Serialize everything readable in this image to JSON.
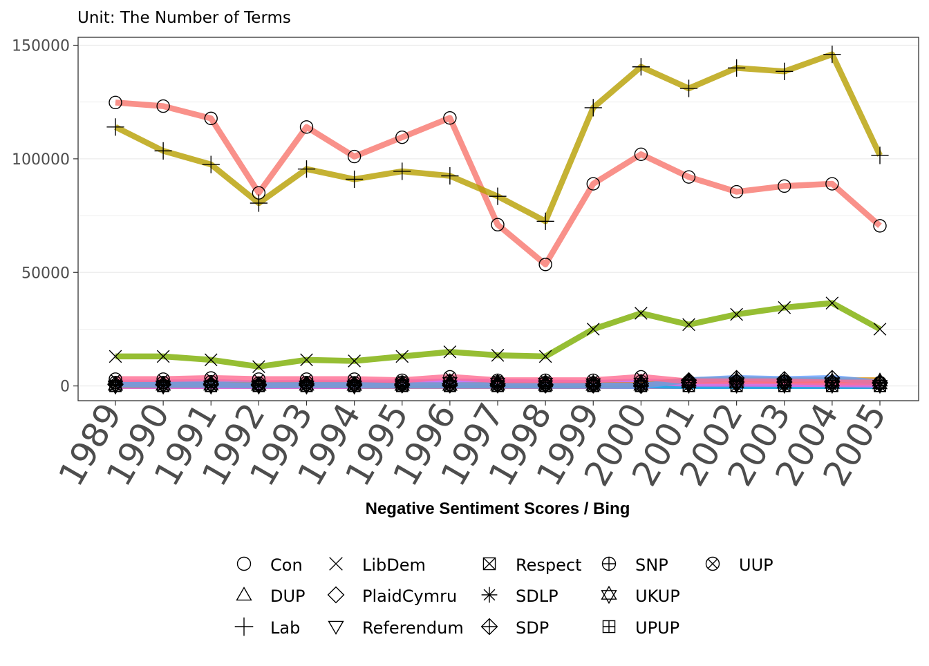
{
  "chart_data": {
    "type": "line",
    "subtitle": "Unit: The Number of Terms",
    "xlabel": "Negative Sentiment Scores / Bing",
    "ylabel": "",
    "ylim": [
      -6500,
      153500
    ],
    "y_ticks": [
      0,
      50000,
      100000,
      150000
    ],
    "y_tick_labels": [
      "0",
      "50000",
      "100000",
      "150000"
    ],
    "grid": true,
    "legend_position": "bottom",
    "x": [
      "1989",
      "1990",
      "1991",
      "1992",
      "1993",
      "1994",
      "1995",
      "1996",
      "1997",
      "1998",
      "1999",
      "2000",
      "2001",
      "2002",
      "2003",
      "2004",
      "2005"
    ],
    "series": [
      {
        "name": "Con",
        "color": "#F8766D",
        "shape": "circle",
        "values": [
          124800,
          123200,
          117800,
          85000,
          114000,
          101000,
          109500,
          118000,
          71000,
          53500,
          89000,
          102000,
          92000,
          85500,
          88000,
          89000,
          70500
        ]
      },
      {
        "name": "DUP",
        "color": "#DE8C00",
        "shape": "triangle-up",
        "values": [
          400,
          400,
          500,
          300,
          400,
          300,
          300,
          300,
          400,
          300,
          300,
          400,
          2500,
          3000,
          2500,
          2500,
          2500
        ]
      },
      {
        "name": "Lab",
        "color": "#B79F00",
        "shape": "plus",
        "values": [
          114000,
          103500,
          97500,
          80500,
          95500,
          91000,
          94500,
          92500,
          83500,
          72500,
          122500,
          140500,
          131000,
          140000,
          138500,
          146000,
          101500
        ]
      },
      {
        "name": "LibDem",
        "color": "#7CAE00",
        "shape": "cross",
        "values": [
          13000,
          13000,
          11500,
          8500,
          11500,
          11000,
          13000,
          15000,
          13500,
          13000,
          25000,
          32000,
          27000,
          31500,
          34500,
          36500,
          25000
        ]
      },
      {
        "name": "PlaidCymru",
        "color": "#00BA38",
        "shape": "diamond",
        "values": [
          800,
          700,
          900,
          700,
          900,
          800,
          800,
          900,
          900,
          700,
          900,
          1000,
          1500,
          1700,
          1700,
          1800,
          1200
        ]
      },
      {
        "name": "Referendum",
        "color": "#00C08B",
        "shape": "triangle-down",
        "values": [
          0,
          0,
          0,
          0,
          0,
          0,
          0,
          0,
          0,
          0,
          0,
          0,
          0,
          0,
          0,
          0,
          0
        ]
      },
      {
        "name": "Respect",
        "color": "#00BFC4",
        "shape": "square-cross",
        "values": [
          0,
          0,
          0,
          0,
          0,
          0,
          0,
          0,
          0,
          0,
          0,
          0,
          0,
          0,
          0,
          0,
          0
        ]
      },
      {
        "name": "SDLP",
        "color": "#00B4F0",
        "shape": "asterisk",
        "values": [
          300,
          300,
          300,
          300,
          300,
          300,
          300,
          300,
          300,
          300,
          300,
          300,
          0,
          0,
          0,
          0,
          0
        ]
      },
      {
        "name": "SDP",
        "color": "#619CFF",
        "shape": "diamond-plus",
        "values": [
          600,
          500,
          500,
          200,
          400,
          300,
          300,
          300,
          300,
          200,
          200,
          0,
          2500,
          3500,
          3000,
          3500,
          1500
        ]
      },
      {
        "name": "SNP",
        "color": "#C77CFF",
        "shape": "circle-plus",
        "values": [
          1500,
          1500,
          1800,
          1200,
          1500,
          1400,
          1600,
          2000,
          1800,
          1500,
          1300,
          2000,
          1500,
          1800,
          1700,
          1500,
          1200
        ]
      },
      {
        "name": "UKUP",
        "color": "#F564E3",
        "shape": "star-of-david",
        "values": [
          0,
          0,
          0,
          0,
          0,
          0,
          1200,
          1800,
          1500,
          1500,
          1300,
          1600,
          1000,
          1000,
          900,
          800,
          600
        ]
      },
      {
        "name": "UPUP",
        "color": "#FF64B0",
        "shape": "square-plus",
        "values": [
          0,
          0,
          0,
          0,
          0,
          0,
          0,
          0,
          0,
          0,
          0,
          0,
          0,
          0,
          0,
          0,
          0
        ]
      },
      {
        "name": "UUP",
        "color": "#FF6C91",
        "shape": "circle-cross",
        "values": [
          3000,
          3000,
          3500,
          3000,
          3000,
          3000,
          2500,
          4000,
          2500,
          2500,
          2500,
          4000,
          2000,
          2000,
          2000,
          1500,
          1500
        ]
      }
    ]
  }
}
